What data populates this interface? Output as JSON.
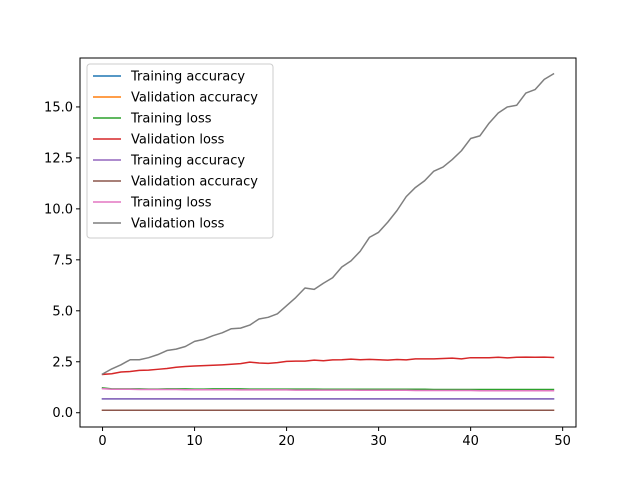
{
  "chart_data": {
    "type": "line",
    "title": "",
    "xlabel": "",
    "ylabel": "",
    "xlim": [
      -2.45,
      51.45
    ],
    "ylim": [
      -0.7,
      17.4
    ],
    "xticks": [
      0,
      10,
      20,
      30,
      40,
      50
    ],
    "xtick_labels": [
      "0",
      "10",
      "20",
      "30",
      "40",
      "50"
    ],
    "yticks": [
      0.0,
      2.5,
      5.0,
      7.5,
      10.0,
      12.5,
      15.0
    ],
    "ytick_labels": [
      "0.0",
      "2.5",
      "5.0",
      "7.5",
      "10.0",
      "12.5",
      "15.0"
    ],
    "grid": false,
    "legend_position": "top-left",
    "x": [
      0,
      1,
      2,
      3,
      4,
      5,
      6,
      7,
      8,
      9,
      10,
      11,
      12,
      13,
      14,
      15,
      16,
      17,
      18,
      19,
      20,
      21,
      22,
      23,
      24,
      25,
      26,
      27,
      28,
      29,
      30,
      31,
      32,
      33,
      34,
      35,
      36,
      37,
      38,
      39,
      40,
      41,
      42,
      43,
      44,
      45,
      46,
      47,
      48,
      49
    ],
    "series": [
      {
        "name": "Training accuracy",
        "color": "#1f77b4",
        "values": [
          0.68,
          0.68,
          0.68,
          0.68,
          0.68,
          0.68,
          0.68,
          0.68,
          0.68,
          0.68,
          0.68,
          0.68,
          0.68,
          0.68,
          0.68,
          0.68,
          0.68,
          0.68,
          0.68,
          0.68,
          0.68,
          0.68,
          0.68,
          0.68,
          0.68,
          0.68,
          0.68,
          0.68,
          0.68,
          0.68,
          0.68,
          0.68,
          0.68,
          0.68,
          0.68,
          0.68,
          0.68,
          0.68,
          0.68,
          0.68,
          0.68,
          0.68,
          0.68,
          0.68,
          0.68,
          0.68,
          0.68,
          0.68,
          0.68,
          0.68
        ]
      },
      {
        "name": "Validation accuracy",
        "color": "#ff7f0e",
        "values": [
          0.12,
          0.12,
          0.12,
          0.12,
          0.12,
          0.12,
          0.12,
          0.12,
          0.12,
          0.12,
          0.12,
          0.12,
          0.12,
          0.12,
          0.12,
          0.12,
          0.12,
          0.12,
          0.12,
          0.12,
          0.12,
          0.12,
          0.12,
          0.12,
          0.12,
          0.12,
          0.12,
          0.12,
          0.12,
          0.12,
          0.12,
          0.12,
          0.12,
          0.12,
          0.12,
          0.12,
          0.12,
          0.12,
          0.12,
          0.12,
          0.12,
          0.12,
          0.12,
          0.12,
          0.12,
          0.12,
          0.12,
          0.12,
          0.12,
          0.12
        ]
      },
      {
        "name": "Training loss",
        "color": "#2ca02c",
        "values": [
          1.22,
          1.17,
          1.17,
          1.17,
          1.17,
          1.16,
          1.16,
          1.17,
          1.17,
          1.17,
          1.16,
          1.16,
          1.17,
          1.17,
          1.17,
          1.17,
          1.16,
          1.16,
          1.16,
          1.16,
          1.16,
          1.16,
          1.16,
          1.16,
          1.15,
          1.15,
          1.15,
          1.15,
          1.15,
          1.15,
          1.15,
          1.15,
          1.15,
          1.15,
          1.15,
          1.15,
          1.14,
          1.14,
          1.14,
          1.14,
          1.14,
          1.14,
          1.14,
          1.14,
          1.14,
          1.14,
          1.14,
          1.14,
          1.14,
          1.14
        ]
      },
      {
        "name": "Validation loss",
        "color": "#d62728",
        "values": [
          1.88,
          1.91,
          2.0,
          2.02,
          2.08,
          2.09,
          2.13,
          2.17,
          2.23,
          2.27,
          2.29,
          2.31,
          2.33,
          2.35,
          2.38,
          2.41,
          2.48,
          2.44,
          2.42,
          2.46,
          2.52,
          2.53,
          2.53,
          2.58,
          2.55,
          2.59,
          2.6,
          2.63,
          2.6,
          2.62,
          2.6,
          2.58,
          2.61,
          2.59,
          2.64,
          2.64,
          2.64,
          2.66,
          2.68,
          2.64,
          2.7,
          2.7,
          2.7,
          2.72,
          2.69,
          2.72,
          2.73,
          2.72,
          2.73,
          2.71
        ]
      },
      {
        "name": "Training accuracy",
        "color": "#9467bd",
        "values": [
          0.68,
          0.68,
          0.68,
          0.68,
          0.68,
          0.68,
          0.68,
          0.68,
          0.68,
          0.68,
          0.68,
          0.68,
          0.68,
          0.68,
          0.68,
          0.68,
          0.68,
          0.68,
          0.68,
          0.68,
          0.68,
          0.68,
          0.68,
          0.68,
          0.68,
          0.68,
          0.68,
          0.68,
          0.68,
          0.68,
          0.68,
          0.68,
          0.68,
          0.68,
          0.68,
          0.68,
          0.68,
          0.68,
          0.68,
          0.68,
          0.68,
          0.68,
          0.68,
          0.68,
          0.68,
          0.68,
          0.68,
          0.68,
          0.68,
          0.68
        ]
      },
      {
        "name": "Validation accuracy",
        "color": "#8c564b",
        "values": [
          0.12,
          0.12,
          0.12,
          0.12,
          0.12,
          0.12,
          0.12,
          0.12,
          0.12,
          0.12,
          0.12,
          0.12,
          0.12,
          0.12,
          0.12,
          0.12,
          0.12,
          0.12,
          0.12,
          0.12,
          0.12,
          0.12,
          0.12,
          0.12,
          0.12,
          0.12,
          0.12,
          0.12,
          0.12,
          0.12,
          0.12,
          0.12,
          0.12,
          0.12,
          0.12,
          0.12,
          0.12,
          0.12,
          0.12,
          0.12,
          0.12,
          0.12,
          0.12,
          0.12,
          0.12,
          0.12,
          0.12,
          0.12,
          0.12,
          0.12
        ]
      },
      {
        "name": "Training loss",
        "color": "#e377c2",
        "values": [
          1.18,
          1.15,
          1.15,
          1.15,
          1.14,
          1.14,
          1.14,
          1.14,
          1.14,
          1.13,
          1.13,
          1.13,
          1.13,
          1.13,
          1.13,
          1.12,
          1.12,
          1.12,
          1.12,
          1.12,
          1.12,
          1.11,
          1.11,
          1.11,
          1.11,
          1.11,
          1.11,
          1.11,
          1.1,
          1.1,
          1.1,
          1.1,
          1.1,
          1.1,
          1.09,
          1.09,
          1.09,
          1.09,
          1.09,
          1.09,
          1.09,
          1.08,
          1.08,
          1.08,
          1.08,
          1.08,
          1.08,
          1.08,
          1.08,
          1.08
        ]
      },
      {
        "name": "Validation loss",
        "color": "#7f7f7f",
        "values": [
          1.9,
          2.15,
          2.35,
          2.6,
          2.6,
          2.7,
          2.85,
          3.05,
          3.12,
          3.25,
          3.5,
          3.6,
          3.78,
          3.92,
          4.12,
          4.15,
          4.3,
          4.6,
          4.68,
          4.85,
          5.25,
          5.65,
          6.12,
          6.05,
          6.35,
          6.62,
          7.15,
          7.45,
          7.92,
          8.6,
          8.85,
          9.35,
          9.92,
          10.6,
          11.05,
          11.38,
          11.85,
          12.05,
          12.42,
          12.85,
          13.45,
          13.58,
          14.2,
          14.7,
          15.0,
          15.08,
          15.68,
          15.85,
          16.35,
          16.62
        ]
      }
    ]
  }
}
